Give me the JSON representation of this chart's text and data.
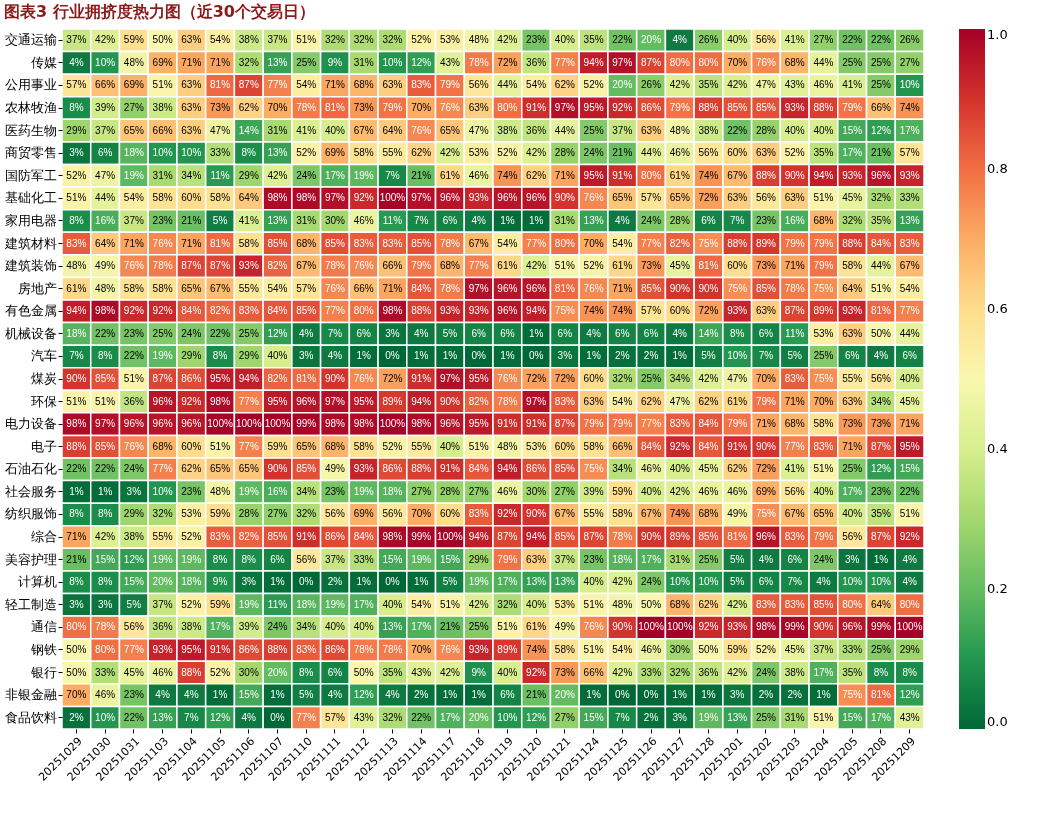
{
  "chart_data": {
    "type": "heatmap",
    "title": "图表3 行业拥挤度热力图（近30个交易日）",
    "categories": [
      "20251029",
      "20251030",
      "20251031",
      "20251103",
      "20251104",
      "20251105",
      "20251106",
      "20251107",
      "20251110",
      "20251111",
      "20251112",
      "20251113",
      "20251114",
      "20251117",
      "20251118",
      "20251119",
      "20251120",
      "20251121",
      "20251124",
      "20251125",
      "20251126",
      "20251127",
      "20251128",
      "20251201",
      "20251202",
      "20251203",
      "20251204",
      "20251205",
      "20251208",
      "20251209"
    ],
    "y_categories": [
      "交通运输",
      "传媒",
      "公用事业",
      "农林牧渔",
      "医药生物",
      "商贸零售",
      "国防军工",
      "基础化工",
      "家用电器",
      "建筑材料",
      "建筑装饰",
      "房地产",
      "有色金属",
      "机械设备",
      "汽车",
      "煤炭",
      "环保",
      "电力设备",
      "电子",
      "石油石化",
      "社会服务",
      "纺织服饰",
      "综合",
      "美容护理",
      "计算机",
      "轻工制造",
      "通信",
      "钢铁",
      "银行",
      "非银金融",
      "食品饮料"
    ],
    "cells": [
      [
        0.37,
        0.42,
        0.59,
        0.5,
        0.63,
        0.54,
        0.38,
        0.37,
        0.51,
        0.32,
        0.32,
        0.32,
        0.52,
        0.53,
        0.48,
        0.42,
        0.23,
        0.4,
        0.35,
        0.22,
        0.2,
        0.04,
        0.26,
        0.4,
        0.56,
        0.41,
        0.27,
        0.22,
        0.22,
        0.26
      ],
      [
        0.04,
        0.1,
        0.48,
        0.69,
        0.71,
        0.71,
        0.32,
        0.13,
        0.25,
        0.09,
        0.31,
        0.1,
        0.12,
        0.43,
        0.78,
        0.72,
        0.36,
        0.77,
        0.94,
        0.97,
        0.87,
        0.8,
        0.8,
        0.7,
        0.76,
        0.68,
        0.44,
        0.25,
        0.25,
        0.27
      ],
      [
        0.57,
        0.66,
        0.69,
        0.51,
        0.63,
        0.81,
        0.87,
        0.77,
        0.54,
        0.71,
        0.68,
        0.63,
        0.83,
        0.79,
        0.56,
        0.44,
        0.54,
        0.62,
        0.52,
        0.2,
        0.26,
        0.42,
        0.35,
        0.42,
        0.47,
        0.43,
        0.46,
        0.41,
        0.25,
        0.1
      ],
      [
        0.08,
        0.39,
        0.27,
        0.38,
        0.63,
        0.73,
        0.62,
        0.7,
        0.78,
        0.81,
        0.73,
        0.79,
        0.7,
        0.76,
        0.63,
        0.8,
        0.91,
        0.97,
        0.95,
        0.92,
        0.86,
        0.79,
        0.88,
        0.85,
        0.85,
        0.93,
        0.88,
        0.79,
        0.66,
        0.74
      ],
      [
        0.29,
        0.37,
        0.65,
        0.66,
        0.63,
        0.47,
        0.14,
        0.31,
        0.41,
        0.4,
        0.67,
        0.64,
        0.76,
        0.65,
        0.47,
        0.38,
        0.36,
        0.44,
        0.25,
        0.37,
        0.63,
        0.48,
        0.38,
        0.22,
        0.28,
        0.4,
        0.4,
        0.15,
        0.12,
        0.17
      ],
      [
        0.03,
        0.06,
        0.18,
        0.1,
        0.1,
        0.33,
        0.08,
        0.13,
        0.52,
        0.69,
        0.58,
        0.55,
        0.62,
        0.42,
        0.53,
        0.52,
        0.42,
        0.28,
        0.24,
        0.21,
        0.44,
        0.46,
        0.56,
        0.6,
        0.63,
        0.52,
        0.35,
        0.17,
        0.21,
        0.57
      ],
      [
        0.52,
        0.47,
        0.19,
        0.31,
        0.34,
        0.11,
        0.29,
        0.42,
        0.24,
        0.17,
        0.19,
        0.07,
        0.21,
        0.61,
        0.46,
        0.74,
        0.62,
        0.71,
        0.95,
        0.91,
        0.8,
        0.61,
        0.74,
        0.67,
        0.88,
        0.9,
        0.94,
        0.93,
        0.96,
        0.93
      ],
      [
        0.51,
        0.44,
        0.54,
        0.58,
        0.6,
        0.58,
        0.64,
        0.98,
        0.98,
        0.97,
        0.92,
        1.0,
        0.97,
        0.96,
        0.93,
        0.96,
        0.96,
        0.9,
        0.76,
        0.65,
        0.57,
        0.65,
        0.72,
        0.63,
        0.56,
        0.63,
        0.51,
        0.45,
        0.32,
        0.33
      ],
      [
        0.08,
        0.16,
        0.37,
        0.23,
        0.21,
        0.05,
        0.41,
        0.13,
        0.31,
        0.3,
        0.46,
        0.11,
        0.07,
        0.06,
        0.04,
        0.01,
        0.01,
        0.31,
        0.13,
        0.04,
        0.24,
        0.28,
        0.06,
        0.07,
        0.23,
        0.16,
        0.68,
        0.32,
        0.35,
        0.13
      ],
      [
        0.83,
        0.64,
        0.71,
        0.76,
        0.71,
        0.81,
        0.58,
        0.85,
        0.68,
        0.85,
        0.83,
        0.83,
        0.85,
        0.78,
        0.67,
        0.54,
        0.77,
        0.8,
        0.7,
        0.54,
        0.77,
        0.82,
        0.75,
        0.88,
        0.89,
        0.79,
        0.79,
        0.88,
        0.84,
        0.83
      ],
      [
        0.48,
        0.49,
        0.76,
        0.78,
        0.87,
        0.87,
        0.93,
        0.82,
        0.67,
        0.78,
        0.76,
        0.66,
        0.79,
        0.68,
        0.77,
        0.61,
        0.42,
        0.51,
        0.52,
        0.61,
        0.73,
        0.45,
        0.81,
        0.6,
        0.73,
        0.71,
        0.79,
        0.58,
        0.44,
        0.67
      ],
      [
        0.61,
        0.48,
        0.58,
        0.58,
        0.65,
        0.67,
        0.55,
        0.54,
        0.57,
        0.76,
        0.66,
        0.71,
        0.84,
        0.78,
        0.97,
        0.96,
        0.96,
        0.81,
        0.76,
        0.71,
        0.85,
        0.9,
        0.9,
        0.75,
        0.85,
        0.78,
        0.75,
        0.64,
        0.51,
        0.54
      ],
      [
        0.94,
        0.98,
        0.92,
        0.92,
        0.84,
        0.82,
        0.83,
        0.84,
        0.85,
        0.77,
        0.8,
        0.98,
        0.88,
        0.93,
        0.93,
        0.96,
        0.94,
        0.75,
        0.74,
        0.74,
        0.57,
        0.6,
        0.72,
        0.93,
        0.63,
        0.87,
        0.89,
        0.93,
        0.81,
        0.77
      ],
      [
        0.18,
        0.22,
        0.23,
        0.25,
        0.24,
        0.22,
        0.25,
        0.12,
        0.04,
        0.07,
        0.06,
        0.03,
        0.04,
        0.05,
        0.06,
        0.06,
        0.01,
        0.06,
        0.04,
        0.06,
        0.06,
        0.04,
        0.14,
        0.08,
        0.06,
        0.11,
        0.53,
        0.63,
        0.5,
        0.44
      ],
      [
        0.07,
        0.08,
        0.22,
        0.19,
        0.29,
        0.08,
        0.29,
        0.4,
        0.03,
        0.04,
        0.01,
        0.0,
        0.01,
        0.01,
        0.0,
        0.01,
        0.0,
        0.03,
        0.01,
        0.02,
        0.02,
        0.01,
        0.05,
        0.1,
        0.07,
        0.05,
        0.25,
        0.06,
        0.04,
        0.06
      ],
      [
        0.9,
        0.85,
        0.51,
        0.87,
        0.86,
        0.95,
        0.94,
        0.82,
        0.81,
        0.9,
        0.76,
        0.72,
        0.91,
        0.97,
        0.95,
        0.76,
        0.72,
        0.72,
        0.6,
        0.32,
        0.25,
        0.34,
        0.42,
        0.47,
        0.7,
        0.83,
        0.75,
        0.55,
        0.56,
        0.4
      ],
      [
        0.51,
        0.51,
        0.36,
        0.96,
        0.92,
        0.98,
        0.77,
        0.95,
        0.96,
        0.97,
        0.95,
        0.89,
        0.94,
        0.9,
        0.82,
        0.78,
        0.97,
        0.83,
        0.63,
        0.54,
        0.62,
        0.47,
        0.62,
        0.61,
        0.79,
        0.71,
        0.7,
        0.63,
        0.34,
        0.45
      ],
      [
        0.98,
        0.97,
        0.96,
        0.96,
        0.96,
        1.0,
        1.0,
        1.0,
        0.99,
        0.98,
        0.98,
        1.0,
        0.98,
        0.96,
        0.95,
        0.91,
        0.91,
        0.87,
        0.79,
        0.79,
        0.77,
        0.83,
        0.84,
        0.79,
        0.71,
        0.68,
        0.58,
        0.73,
        0.73,
        0.71
      ],
      [
        0.88,
        0.85,
        0.76,
        0.68,
        0.6,
        0.51,
        0.77,
        0.59,
        0.65,
        0.68,
        0.58,
        0.52,
        0.55,
        0.4,
        0.51,
        0.48,
        0.53,
        0.6,
        0.58,
        0.66,
        0.84,
        0.92,
        0.84,
        0.91,
        0.9,
        0.77,
        0.83,
        0.71,
        0.87,
        0.95
      ],
      [
        0.22,
        0.22,
        0.24,
        0.77,
        0.62,
        0.65,
        0.65,
        0.9,
        0.85,
        0.49,
        0.93,
        0.86,
        0.88,
        0.91,
        0.84,
        0.94,
        0.86,
        0.85,
        0.75,
        0.34,
        0.46,
        0.4,
        0.45,
        0.62,
        0.72,
        0.41,
        0.51,
        0.25,
        0.12,
        0.15
      ],
      [
        0.01,
        0.01,
        0.03,
        0.1,
        0.23,
        0.48,
        0.19,
        0.16,
        0.34,
        0.23,
        0.19,
        0.18,
        0.27,
        0.28,
        0.27,
        0.46,
        0.3,
        0.27,
        0.39,
        0.59,
        0.4,
        0.42,
        0.46,
        0.46,
        0.69,
        0.56,
        0.4,
        0.17,
        0.23,
        0.22
      ],
      [
        0.08,
        0.08,
        0.29,
        0.32,
        0.53,
        0.59,
        0.28,
        0.27,
        0.32,
        0.56,
        0.69,
        0.56,
        0.7,
        0.6,
        0.83,
        0.92,
        0.9,
        0.67,
        0.55,
        0.58,
        0.67,
        0.74,
        0.68,
        0.49,
        0.75,
        0.67,
        0.65,
        0.4,
        0.35,
        0.51
      ],
      [
        0.71,
        0.42,
        0.38,
        0.55,
        0.52,
        0.83,
        0.82,
        0.85,
        0.91,
        0.86,
        0.84,
        0.98,
        0.99,
        1.0,
        0.94,
        0.87,
        0.94,
        0.85,
        0.87,
        0.78,
        0.9,
        0.89,
        0.85,
        0.81,
        0.96,
        0.83,
        0.79,
        0.56,
        0.87,
        0.92
      ],
      [
        0.21,
        0.15,
        0.12,
        0.19,
        0.19,
        0.08,
        0.08,
        0.06,
        0.56,
        0.37,
        0.33,
        0.15,
        0.19,
        0.15,
        0.29,
        0.79,
        0.63,
        0.37,
        0.23,
        0.18,
        0.17,
        0.31,
        0.25,
        0.05,
        0.04,
        0.06,
        0.24,
        0.03,
        0.01,
        0.04
      ],
      [
        0.08,
        0.08,
        0.15,
        0.2,
        0.18,
        0.09,
        0.03,
        0.01,
        0.0,
        0.02,
        0.01,
        0.0,
        0.01,
        0.05,
        0.19,
        0.17,
        0.13,
        0.13,
        0.4,
        0.42,
        0.24,
        0.1,
        0.1,
        0.05,
        0.06,
        0.07,
        0.04,
        0.1,
        0.1,
        0.04
      ],
      [
        0.03,
        0.03,
        0.05,
        0.37,
        0.52,
        0.59,
        0.19,
        0.11,
        0.18,
        0.19,
        0.17,
        0.4,
        0.54,
        0.51,
        0.42,
        0.32,
        0.4,
        0.53,
        0.51,
        0.48,
        0.5,
        0.68,
        0.62,
        0.42,
        0.83,
        0.83,
        0.85,
        0.8,
        0.64,
        0.8
      ],
      [
        0.8,
        0.78,
        0.56,
        0.36,
        0.38,
        0.17,
        0.39,
        0.24,
        0.34,
        0.4,
        0.4,
        0.13,
        0.17,
        0.21,
        0.25,
        0.51,
        0.61,
        0.49,
        0.76,
        0.9,
        1.0,
        1.0,
        0.92,
        0.93,
        0.98,
        0.99,
        0.9,
        0.96,
        0.99,
        1.0
      ],
      [
        0.5,
        0.8,
        0.77,
        0.93,
        0.95,
        0.91,
        0.86,
        0.88,
        0.83,
        0.86,
        0.78,
        0.78,
        0.7,
        0.76,
        0.93,
        0.89,
        0.74,
        0.58,
        0.51,
        0.54,
        0.46,
        0.3,
        0.5,
        0.59,
        0.52,
        0.45,
        0.37,
        0.33,
        0.25,
        0.29
      ],
      [
        0.5,
        0.33,
        0.45,
        0.46,
        0.88,
        0.52,
        0.3,
        0.2,
        0.08,
        0.06,
        0.5,
        0.35,
        0.43,
        0.42,
        0.09,
        0.4,
        0.92,
        0.73,
        0.66,
        0.42,
        0.33,
        0.32,
        0.36,
        0.42,
        0.24,
        0.38,
        0.17,
        0.35,
        0.08,
        0.08
      ],
      [
        0.7,
        0.46,
        0.23,
        0.04,
        0.04,
        0.01,
        0.15,
        0.01,
        0.05,
        0.04,
        0.12,
        0.04,
        0.02,
        0.01,
        0.01,
        0.06,
        0.21,
        0.2,
        0.01,
        0.0,
        0.0,
        0.01,
        0.01,
        0.03,
        0.02,
        0.02,
        0.01,
        0.75,
        0.81,
        0.12
      ],
      [
        0.02,
        0.1,
        0.22,
        0.13,
        0.07,
        0.12,
        0.04,
        0.0,
        0.77,
        0.57,
        0.43,
        0.32,
        0.22,
        0.17,
        0.2,
        0.1,
        0.12,
        0.27,
        0.15,
        0.07,
        0.02,
        0.03,
        0.19,
        0.13,
        0.25,
        0.31,
        0.51,
        0.15,
        0.17,
        0.43
      ]
    ],
    "cell_labels": [
      [
        "37%",
        "42%",
        "59%",
        "50%",
        "63%",
        "54%",
        "38%",
        "37%",
        "51%",
        "32%",
        "32%",
        "32%",
        "52%",
        "53%",
        "48%",
        "42%",
        "23%",
        "40%",
        "35%",
        "22%",
        "20%",
        "4%",
        "26%",
        "40%",
        "56%",
        "41%",
        "27%",
        "22%",
        "22%",
        "26%"
      ],
      [
        "4%",
        "10%",
        "48%",
        "69%",
        "71%",
        "71%",
        "32%",
        "13%",
        "25%",
        "9%",
        "31%",
        "10%",
        "12%",
        "43%",
        "78%",
        "72%",
        "36%",
        "77%",
        "94%",
        "97%",
        "87%",
        "80%",
        "80%",
        "70%",
        "76%",
        "68%",
        "44%",
        "25%",
        "25%",
        "27%"
      ],
      [
        "57%",
        "66%",
        "69%",
        "51%",
        "63%",
        "81%",
        "87%",
        "77%",
        "54%",
        "71%",
        "68%",
        "63%",
        "83%",
        "79%",
        "56%",
        "44%",
        "54%",
        "62%",
        "52%",
        "20%",
        "26%",
        "42%",
        "35%",
        "42%",
        "47%",
        "43%",
        "46%",
        "41%",
        "25%",
        "10%"
      ],
      [
        "8%",
        "39%",
        "27%",
        "38%",
        "63%",
        "73%",
        "62%",
        "70%",
        "78%",
        "81%",
        "73%",
        "79%",
        "70%",
        "76%",
        "63%",
        "80%",
        "91%",
        "97%",
        "95%",
        "92%",
        "86%",
        "79%",
        "88%",
        "85%",
        "85%",
        "93%",
        "88%",
        "79%",
        "66%",
        "74%"
      ],
      [
        "29%",
        "37%",
        "65%",
        "66%",
        "63%",
        "47%",
        "14%",
        "31%",
        "41%",
        "40%",
        "67%",
        "64%",
        "76%",
        "65%",
        "47%",
        "38%",
        "36%",
        "44%",
        "25%",
        "37%",
        "63%",
        "48%",
        "38%",
        "22%",
        "28%",
        "40%",
        "40%",
        "15%",
        "12%",
        "17%"
      ],
      [
        "3%",
        "6%",
        "18%",
        "10%",
        "10%",
        "33%",
        "8%",
        "13%",
        "52%",
        "69%",
        "58%",
        "55%",
        "62%",
        "42%",
        "53%",
        "52%",
        "42%",
        "28%",
        "24%",
        "21%",
        "44%",
        "46%",
        "56%",
        "60%",
        "63%",
        "52%",
        "35%",
        "17%",
        "21%",
        "57%"
      ],
      [
        "52%",
        "47%",
        "19%",
        "31%",
        "34%",
        "11%",
        "29%",
        "42%",
        "24%",
        "17%",
        "19%",
        "7%",
        "21%",
        "61%",
        "46%",
        "74%",
        "62%",
        "71%",
        "95%",
        "91%",
        "80%",
        "61%",
        "74%",
        "67%",
        "88%",
        "90%",
        "94%",
        "93%",
        "96%",
        "93%"
      ],
      [
        "51%",
        "44%",
        "54%",
        "58%",
        "60%",
        "58%",
        "64%",
        "98%",
        "98%",
        "97%",
        "92%",
        "100%",
        "97%",
        "96%",
        "93%",
        "96%",
        "96%",
        "90%",
        "76%",
        "65%",
        "57%",
        "65%",
        "72%",
        "63%",
        "56%",
        "63%",
        "51%",
        "45%",
        "32%",
        "33%"
      ],
      [
        "8%",
        "16%",
        "37%",
        "23%",
        "21%",
        "5%",
        "41%",
        "13%",
        "31%",
        "30%",
        "46%",
        "11%",
        "7%",
        "6%",
        "4%",
        "1%",
        "1%",
        "31%",
        "13%",
        "4%",
        "24%",
        "28%",
        "6%",
        "7%",
        "23%",
        "16%",
        "68%",
        "32%",
        "35%",
        "13%"
      ],
      [
        "83%",
        "64%",
        "71%",
        "76%",
        "71%",
        "81%",
        "58%",
        "85%",
        "68%",
        "85%",
        "83%",
        "83%",
        "85%",
        "78%",
        "67%",
        "54%",
        "77%",
        "80%",
        "70%",
        "54%",
        "77%",
        "82%",
        "75%",
        "88%",
        "89%",
        "79%",
        "79%",
        "88%",
        "84%",
        "83%"
      ],
      [
        "48%",
        "49%",
        "76%",
        "78%",
        "87%",
        "87%",
        "93%",
        "82%",
        "67%",
        "78%",
        "76%",
        "66%",
        "79%",
        "68%",
        "77%",
        "61%",
        "42%",
        "51%",
        "52%",
        "61%",
        "73%",
        "45%",
        "81%",
        "60%",
        "73%",
        "71%",
        "79%",
        "58%",
        "44%",
        "67%"
      ],
      [
        "61%",
        "48%",
        "58%",
        "58%",
        "65%",
        "67%",
        "55%",
        "54%",
        "57%",
        "76%",
        "66%",
        "71%",
        "84%",
        "78%",
        "97%",
        "96%",
        "96%",
        "81%",
        "76%",
        "71%",
        "85%",
        "90%",
        "90%",
        "75%",
        "85%",
        "78%",
        "75%",
        "64%",
        "51%",
        "54%"
      ],
      [
        "94%",
        "98%",
        "92%",
        "92%",
        "84%",
        "82%",
        "83%",
        "84%",
        "85%",
        "77%",
        "80%",
        "98%",
        "88%",
        "93%",
        "93%",
        "96%",
        "94%",
        "75%",
        "74%",
        "74%",
        "57%",
        "60%",
        "72%",
        "93%",
        "63%",
        "87%",
        "89%",
        "93%",
        "81%",
        "77%"
      ],
      [
        "18%",
        "22%",
        "23%",
        "25%",
        "24%",
        "22%",
        "25%",
        "12%",
        "4%",
        "7%",
        "6%",
        "3%",
        "4%",
        "5%",
        "6%",
        "6%",
        "1%",
        "6%",
        "4%",
        "6%",
        "6%",
        "4%",
        "14%",
        "8%",
        "6%",
        "11%",
        "53%",
        "63%",
        "50%",
        "44%"
      ],
      [
        "7%",
        "8%",
        "22%",
        "19%",
        "29%",
        "8%",
        "29%",
        "40%",
        "3%",
        "4%",
        "1%",
        "0%",
        "1%",
        "1%",
        "0%",
        "1%",
        "0%",
        "3%",
        "1%",
        "2%",
        "2%",
        "1%",
        "5%",
        "10%",
        "7%",
        "5%",
        "25%",
        "6%",
        "4%",
        "6%"
      ],
      [
        "90%",
        "85%",
        "51%",
        "87%",
        "86%",
        "95%",
        "94%",
        "82%",
        "81%",
        "90%",
        "76%",
        "72%",
        "91%",
        "97%",
        "95%",
        "76%",
        "72%",
        "72%",
        "60%",
        "32%",
        "25%",
        "34%",
        "42%",
        "47%",
        "70%",
        "83%",
        "75%",
        "55%",
        "56%",
        "40%"
      ],
      [
        "51%",
        "51%",
        "36%",
        "96%",
        "92%",
        "98%",
        "77%",
        "95%",
        "96%",
        "97%",
        "95%",
        "89%",
        "94%",
        "90%",
        "82%",
        "78%",
        "97%",
        "83%",
        "63%",
        "54%",
        "62%",
        "47%",
        "62%",
        "61%",
        "79%",
        "71%",
        "70%",
        "63%",
        "34%",
        "45%"
      ],
      [
        "98%",
        "97%",
        "96%",
        "96%",
        "96%",
        "100%",
        "100%",
        "100%",
        "99%",
        "98%",
        "98%",
        "100%",
        "98%",
        "96%",
        "95%",
        "91%",
        "91%",
        "87%",
        "79%",
        "79%",
        "77%",
        "83%",
        "84%",
        "79%",
        "71%",
        "68%",
        "58%",
        "73%",
        "73%",
        "71%"
      ],
      [
        "88%",
        "85%",
        "76%",
        "68%",
        "60%",
        "51%",
        "77%",
        "59%",
        "65%",
        "68%",
        "58%",
        "52%",
        "55%",
        "40%",
        "51%",
        "48%",
        "53%",
        "60%",
        "58%",
        "66%",
        "84%",
        "92%",
        "84%",
        "91%",
        "90%",
        "77%",
        "83%",
        "71%",
        "87%",
        "95%"
      ],
      [
        "22%",
        "22%",
        "24%",
        "77%",
        "62%",
        "65%",
        "65%",
        "90%",
        "85%",
        "49%",
        "93%",
        "86%",
        "88%",
        "91%",
        "84%",
        "94%",
        "86%",
        "85%",
        "75%",
        "34%",
        "46%",
        "40%",
        "45%",
        "62%",
        "72%",
        "41%",
        "51%",
        "25%",
        "12%",
        "15%"
      ],
      [
        "1%",
        "1%",
        "3%",
        "10%",
        "23%",
        "48%",
        "19%",
        "16%",
        "34%",
        "23%",
        "19%",
        "18%",
        "27%",
        "28%",
        "27%",
        "46%",
        "30%",
        "27%",
        "39%",
        "59%",
        "40%",
        "42%",
        "46%",
        "46%",
        "69%",
        "56%",
        "40%",
        "17%",
        "23%",
        "22%"
      ],
      [
        "8%",
        "8%",
        "29%",
        "32%",
        "53%",
        "59%",
        "28%",
        "27%",
        "32%",
        "56%",
        "69%",
        "56%",
        "70%",
        "60%",
        "83%",
        "92%",
        "90%",
        "67%",
        "55%",
        "58%",
        "67%",
        "74%",
        "68%",
        "49%",
        "75%",
        "67%",
        "65%",
        "40%",
        "35%",
        "51%"
      ],
      [
        "71%",
        "42%",
        "38%",
        "55%",
        "52%",
        "83%",
        "82%",
        "85%",
        "91%",
        "86%",
        "84%",
        "98%",
        "99%",
        "100%",
        "94%",
        "87%",
        "94%",
        "85%",
        "87%",
        "78%",
        "90%",
        "89%",
        "85%",
        "81%",
        "96%",
        "83%",
        "79%",
        "56%",
        "87%",
        "92%"
      ],
      [
        "21%",
        "15%",
        "12%",
        "19%",
        "19%",
        "8%",
        "8%",
        "6%",
        "56%",
        "37%",
        "33%",
        "15%",
        "19%",
        "15%",
        "29%",
        "79%",
        "63%",
        "37%",
        "23%",
        "18%",
        "17%",
        "31%",
        "25%",
        "5%",
        "4%",
        "6%",
        "24%",
        "3%",
        "1%",
        "4%"
      ],
      [
        "8%",
        "8%",
        "15%",
        "20%",
        "18%",
        "9%",
        "3%",
        "1%",
        "0%",
        "2%",
        "1%",
        "0%",
        "1%",
        "5%",
        "19%",
        "17%",
        "13%",
        "13%",
        "40%",
        "42%",
        "24%",
        "10%",
        "10%",
        "5%",
        "6%",
        "7%",
        "4%",
        "10%",
        "10%",
        "4%"
      ],
      [
        "3%",
        "3%",
        "5%",
        "37%",
        "52%",
        "59%",
        "19%",
        "11%",
        "18%",
        "19%",
        "17%",
        "40%",
        "54%",
        "51%",
        "42%",
        "32%",
        "40%",
        "53%",
        "51%",
        "48%",
        "50%",
        "68%",
        "62%",
        "42%",
        "83%",
        "83%",
        "85%",
        "80%",
        "64%",
        "80%"
      ],
      [
        "80%",
        "78%",
        "56%",
        "36%",
        "38%",
        "17%",
        "39%",
        "24%",
        "34%",
        "40%",
        "40%",
        "13%",
        "17%",
        "21%",
        "25%",
        "51%",
        "61%",
        "49%",
        "76%",
        "90%",
        "100%",
        "100%",
        "92%",
        "93%",
        "98%",
        "99%",
        "90%",
        "96%",
        "99%",
        "100%"
      ],
      [
        "50%",
        "80%",
        "77%",
        "93%",
        "95%",
        "91%",
        "86%",
        "88%",
        "83%",
        "86%",
        "78%",
        "78%",
        "70%",
        "76%",
        "93%",
        "89%",
        "74%",
        "58%",
        "51%",
        "54%",
        "46%",
        "30%",
        "50%",
        "59%",
        "52%",
        "45%",
        "37%",
        "33%",
        "25%",
        "29%"
      ],
      [
        "50%",
        "33%",
        "45%",
        "46%",
        "88%",
        "52%",
        "30%",
        "20%",
        "8%",
        "6%",
        "50%",
        "35%",
        "43%",
        "42%",
        "9%",
        "40%",
        "92%",
        "73%",
        "66%",
        "42%",
        "33%",
        "32%",
        "36%",
        "42%",
        "24%",
        "38%",
        "17%",
        "35%",
        "8%",
        "8%"
      ],
      [
        "70%",
        "46%",
        "23%",
        "4%",
        "4%",
        "1%",
        "15%",
        "1%",
        "5%",
        "4%",
        "12%",
        "4%",
        "2%",
        "1%",
        "1%",
        "6%",
        "21%",
        "20%",
        "1%",
        "0%",
        "0%",
        "1%",
        "1%",
        "3%",
        "2%",
        "2%",
        "1%",
        "75%",
        "81%",
        "12%"
      ],
      [
        "2%",
        "10%",
        "22%",
        "13%",
        "7%",
        "12%",
        "4%",
        "0%",
        "77%",
        "57%",
        "43%",
        "32%",
        "22%",
        "17%",
        "20%",
        "10%",
        "12%",
        "27%",
        "15%",
        "7%",
        "2%",
        "3%",
        "19%",
        "13%",
        "25%",
        "31%",
        "51%",
        "15%",
        "17%",
        "43%"
      ]
    ],
    "clim": [
      0,
      1
    ],
    "cticks": [
      {
        "value": 0,
        "label": "0.0"
      },
      0.2,
      0.4,
      0.6,
      0.8,
      {
        "value": 1,
        "label": "1.0"
      }
    ]
  }
}
